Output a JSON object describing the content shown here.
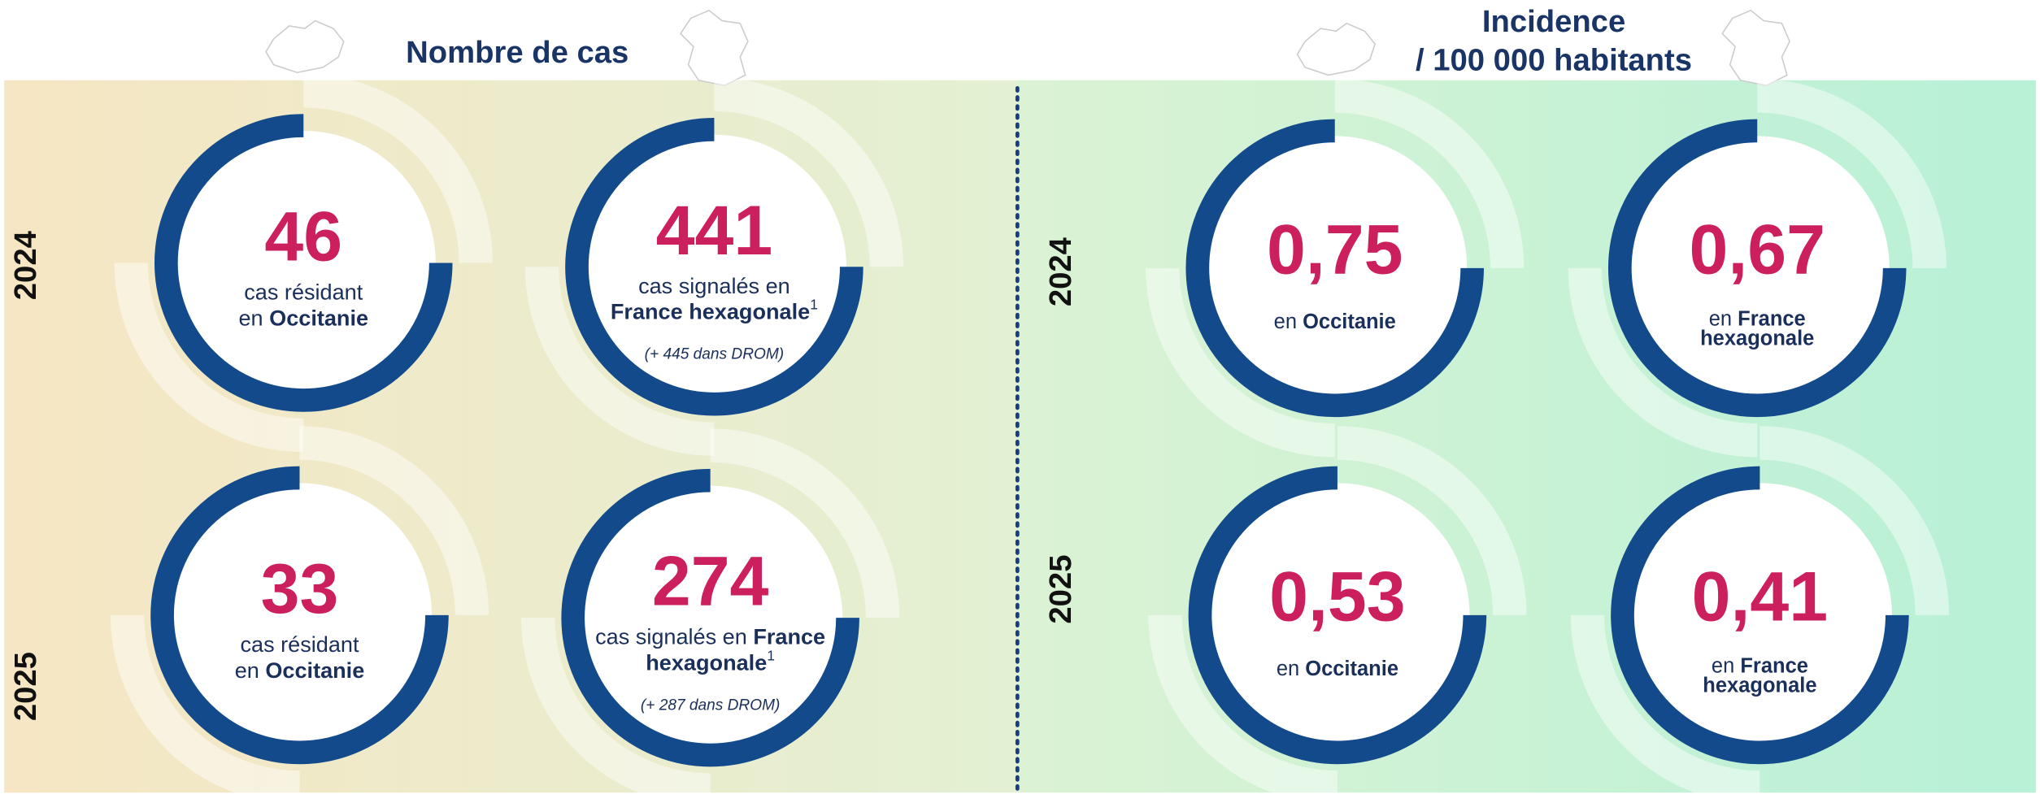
{
  "sections": [
    {
      "title": [
        "Nombre de cas"
      ],
      "years": [
        "2024",
        "2025"
      ],
      "cards": [
        {
          "value": "46",
          "lines": [
            [
              {
                "text": "cas résidant"
              }
            ],
            [
              {
                "text": "en "
              },
              {
                "text": "Occitanie",
                "bold": true
              }
            ]
          ]
        },
        {
          "value": "441",
          "lines": [
            [
              {
                "text": "cas signalés en"
              }
            ],
            [
              {
                "text": "France hexagonale",
                "bold": true
              },
              {
                "text": "1",
                "sup": true
              }
            ]
          ],
          "note": "(+ 445 dans DROM)"
        },
        {
          "value": "33",
          "lines": [
            [
              {
                "text": "cas résidant"
              }
            ],
            [
              {
                "text": "en "
              },
              {
                "text": "Occitanie",
                "bold": true
              }
            ]
          ]
        },
        {
          "value": "274",
          "lines": [
            [
              {
                "text": "cas signalés en "
              },
              {
                "text": "France",
                "bold": true
              }
            ],
            [
              {
                "text": "hexagonale",
                "bold": true
              },
              {
                "text": "1",
                "sup": true
              }
            ]
          ],
          "note": "(+ 287 dans DROM)"
        }
      ]
    },
    {
      "title": [
        "Incidence",
        "/ 100 000 habitants"
      ],
      "years": [
        "2024",
        "2025"
      ],
      "cards": [
        {
          "value": "0,75",
          "lines": [
            [
              {
                "text": "en "
              },
              {
                "text": "Occitanie",
                "bold": true
              }
            ]
          ]
        },
        {
          "value": "0,67",
          "lines": [
            [
              {
                "text": "en "
              },
              {
                "text": "France",
                "bold": true
              }
            ],
            [
              {
                "text": "hexagonale",
                "bold": true
              }
            ]
          ]
        },
        {
          "value": "0,53",
          "lines": [
            [
              {
                "text": "en "
              },
              {
                "text": "Occitanie",
                "bold": true
              }
            ]
          ]
        },
        {
          "value": "0,41",
          "lines": [
            [
              {
                "text": "en "
              },
              {
                "text": "France",
                "bold": true
              }
            ],
            [
              {
                "text": "hexagonale",
                "bold": true
              }
            ]
          ]
        }
      ]
    }
  ]
}
